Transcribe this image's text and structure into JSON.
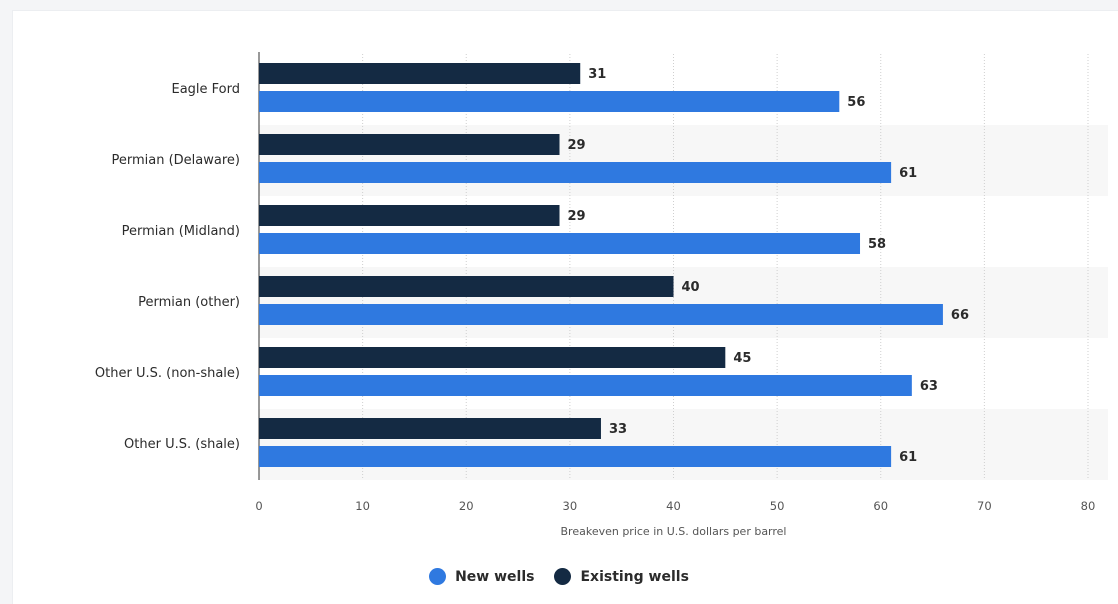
{
  "chart_data": {
    "type": "bar",
    "orientation": "horizontal",
    "categories": [
      "Eagle Ford",
      "Permian (Delaware)",
      "Permian (Midland)",
      "Permian (other)",
      "Other U.S. (non-shale)",
      "Other U.S. (shale)"
    ],
    "series": [
      {
        "name": "Existing wells",
        "color": "#142a43",
        "values": [
          31,
          29,
          29,
          40,
          45,
          33
        ]
      },
      {
        "name": "New wells",
        "color": "#2f79e0",
        "values": [
          56,
          61,
          58,
          66,
          63,
          61
        ]
      }
    ],
    "xlabel": "Breakeven price in U.S. dollars per barrel",
    "xlim": [
      0,
      80
    ],
    "xticks": [
      "0",
      "10",
      "20",
      "30",
      "40",
      "50",
      "60",
      "70",
      "80"
    ],
    "grid": "vertical dotted",
    "legend_position": "bottom"
  },
  "legend": {
    "items": [
      {
        "label": "New wells",
        "color": "#2f79e0"
      },
      {
        "label": "Existing wells",
        "color": "#142a43"
      }
    ]
  }
}
